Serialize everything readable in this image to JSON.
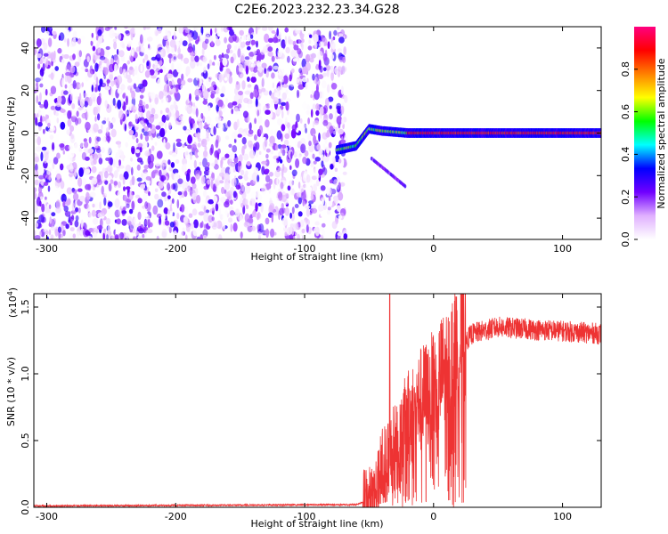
{
  "title": "C2E6.2023.232.23.34.G28",
  "chart_data": [
    {
      "type": "heatmap",
      "xlabel": "Height of straight line (km)",
      "ylabel": "Frequency (Hz)",
      "xlim": [
        -310,
        130
      ],
      "ylim": [
        -50,
        50
      ],
      "xticks": [
        -300,
        -200,
        -100,
        0,
        100
      ],
      "yticks": [
        -40,
        -20,
        0,
        20,
        40
      ],
      "colorbar": {
        "label": "Normalized spectral amplitude",
        "range": [
          0.0,
          1.0
        ],
        "ticks": [
          "0.0",
          "0.2",
          "0.4",
          "0.6",
          "0.8"
        ],
        "colors": [
          "#ffffff",
          "#e0b0ff",
          "#7000ff",
          "#0000ff",
          "#00ffff",
          "#00ff00",
          "#ffff00",
          "#ff8000",
          "#ff0000",
          "#ff0080"
        ]
      },
      "features": {
        "noise_region_x": [
          -310,
          -68
        ],
        "signal_track": [
          {
            "x": -75,
            "y": -8
          },
          {
            "x": -60,
            "y": -6
          },
          {
            "x": -50,
            "y": 2
          },
          {
            "x": -40,
            "y": 1
          },
          {
            "x": -20,
            "y": 0
          },
          {
            "x": 130,
            "y": 0
          }
        ]
      }
    },
    {
      "type": "line",
      "xlabel": "Height of straight line (km)",
      "ylabel": "SNR (10 * v/v)",
      "y_multiplier": "(x10",
      "y_multiplier_exp": "4",
      "y_multiplier_close": ")",
      "xlim": [
        -310,
        130
      ],
      "ylim": [
        0,
        1.6
      ],
      "xticks": [
        -300,
        -200,
        -100,
        0,
        100
      ],
      "yticks": [
        "0.0",
        "0.5",
        "1.0",
        "1.5"
      ],
      "line_color": "#ee3333",
      "series_profile": [
        {
          "x": -310,
          "y": 0.01
        },
        {
          "x": -60,
          "y": 0.02
        },
        {
          "x": -45,
          "y": 0.08
        },
        {
          "x": -40,
          "y": 0.3
        },
        {
          "x": -30,
          "y": 0.45
        },
        {
          "x": -20,
          "y": 0.65
        },
        {
          "x": -10,
          "y": 0.8
        },
        {
          "x": 0,
          "y": 0.9
        },
        {
          "x": 10,
          "y": 1.05
        },
        {
          "x": 20,
          "y": 1.2
        },
        {
          "x": 30,
          "y": 1.3
        },
        {
          "x": 50,
          "y": 1.35
        },
        {
          "x": 80,
          "y": 1.33
        },
        {
          "x": 100,
          "y": 1.32
        },
        {
          "x": 130,
          "y": 1.3
        }
      ],
      "peak": {
        "x": -34,
        "y": 1.6
      }
    }
  ]
}
